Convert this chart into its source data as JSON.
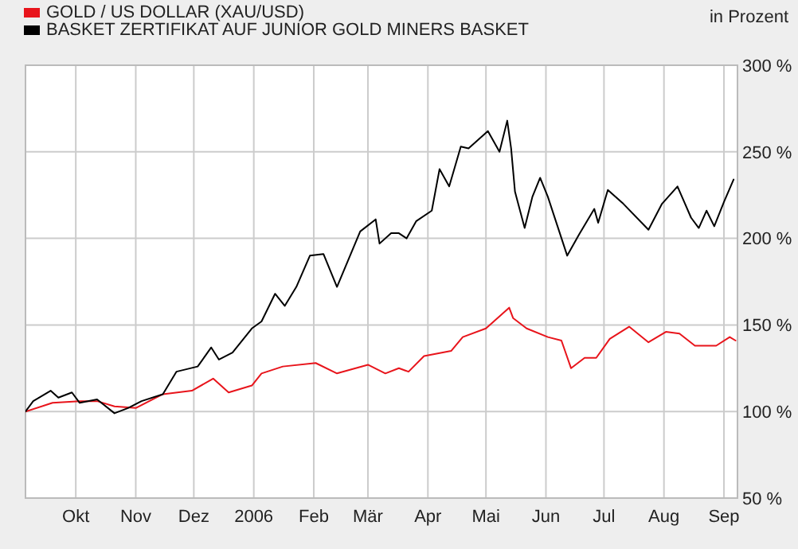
{
  "chart_data": {
    "type": "line",
    "ylabel": "in Prozent",
    "xlim": [
      "2005-09-05",
      "2006-09-08"
    ],
    "xticks": [
      {
        "value": "2005-10-01",
        "label": "Okt"
      },
      {
        "value": "2005-11-01",
        "label": "Nov"
      },
      {
        "value": "2005-12-01",
        "label": "Dez"
      },
      {
        "value": "2006-01-01",
        "label": "2006"
      },
      {
        "value": "2006-02-01",
        "label": "Feb"
      },
      {
        "value": "2006-03-01",
        "label": "Mär"
      },
      {
        "value": "2006-04-01",
        "label": "Apr"
      },
      {
        "value": "2006-05-01",
        "label": "Mai"
      },
      {
        "value": "2006-06-01",
        "label": "Jun"
      },
      {
        "value": "2006-07-01",
        "label": "Jul"
      },
      {
        "value": "2006-08-01",
        "label": "Aug"
      },
      {
        "value": "2006-09-01",
        "label": "Sep"
      }
    ],
    "ylim": [
      50,
      300
    ],
    "yticks": [
      {
        "value": 50,
        "label": "50 %"
      },
      {
        "value": 100,
        "label": "100 %"
      },
      {
        "value": 150,
        "label": "150 %"
      },
      {
        "value": 200,
        "label": "200 %"
      },
      {
        "value": 250,
        "label": "250 %"
      },
      {
        "value": 300,
        "label": "300 %"
      }
    ],
    "grid": true,
    "legend": "top left",
    "marker": "none",
    "line_style": "solid",
    "series": [
      {
        "name": "GOLD / US DOLLAR (XAU/USD)",
        "color": "#e8141b",
        "x": [
          "2005-09-05",
          "2005-09-19",
          "2005-10-03",
          "2005-10-12",
          "2005-10-21",
          "2005-11-01",
          "2005-11-15",
          "2005-11-30",
          "2005-12-11",
          "2005-12-19",
          "2005-12-31",
          "2006-01-05",
          "2006-01-16",
          "2006-02-02",
          "2006-02-13",
          "2006-03-01",
          "2006-03-10",
          "2006-03-17",
          "2006-03-22",
          "2006-03-30",
          "2006-04-13",
          "2006-04-19",
          "2006-05-01",
          "2006-05-13",
          "2006-05-15",
          "2006-05-22",
          "2006-06-02",
          "2006-06-09",
          "2006-06-14",
          "2006-06-21",
          "2006-06-27",
          "2006-07-04",
          "2006-07-14",
          "2006-07-24",
          "2006-08-02",
          "2006-08-09",
          "2006-08-17",
          "2006-08-28",
          "2006-09-04",
          "2006-09-07"
        ],
        "values": [
          100,
          105,
          106,
          106,
          103,
          102,
          110,
          112,
          119,
          111,
          115,
          122,
          126,
          128,
          122,
          127,
          122,
          125,
          123,
          132,
          135,
          143,
          148,
          160,
          154,
          148,
          143,
          141,
          125,
          131,
          131,
          142,
          149,
          140,
          146,
          145,
          138,
          138,
          143,
          141
        ]
      },
      {
        "name": "BASKET ZERTIFIKAT AUF JUNIOR GOLD MINERS BASKET",
        "color": "#000000",
        "x": [
          "2005-09-05",
          "2005-09-09",
          "2005-09-18",
          "2005-09-22",
          "2005-09-29",
          "2005-10-03",
          "2005-10-12",
          "2005-10-21",
          "2005-10-28",
          "2005-11-04",
          "2005-11-15",
          "2005-11-22",
          "2005-12-03",
          "2005-12-10",
          "2005-12-14",
          "2005-12-21",
          "2005-12-31",
          "2006-01-05",
          "2006-01-12",
          "2006-01-17",
          "2006-01-23",
          "2006-01-30",
          "2006-02-06",
          "2006-02-13",
          "2006-02-25",
          "2006-03-05",
          "2006-03-07",
          "2006-03-13",
          "2006-03-17",
          "2006-03-21",
          "2006-03-26",
          "2006-04-03",
          "2006-04-07",
          "2006-04-12",
          "2006-04-18",
          "2006-04-22",
          "2006-05-02",
          "2006-05-08",
          "2006-05-12",
          "2006-05-14",
          "2006-05-16",
          "2006-05-21",
          "2006-05-25",
          "2006-05-29",
          "2006-06-02",
          "2006-06-07",
          "2006-06-12",
          "2006-06-18",
          "2006-06-26",
          "2006-06-28",
          "2006-07-03",
          "2006-07-11",
          "2006-07-24",
          "2006-07-31",
          "2006-08-08",
          "2006-08-15",
          "2006-08-19",
          "2006-08-23",
          "2006-08-27",
          "2006-09-01",
          "2006-09-06"
        ],
        "values": [
          100,
          106,
          112,
          108,
          111,
          105,
          107,
          99,
          102,
          106,
          110,
          123,
          126,
          137,
          130,
          134,
          148,
          152,
          168,
          161,
          172,
          190,
          191,
          172,
          204,
          211,
          197,
          203,
          203,
          200,
          210,
          216,
          240,
          230,
          253,
          252,
          262,
          250,
          268,
          252,
          227,
          206,
          224,
          235,
          224,
          207,
          190,
          202,
          217,
          209,
          228,
          220,
          205,
          220,
          230,
          212,
          206,
          216,
          207,
          221,
          234
        ]
      }
    ]
  }
}
